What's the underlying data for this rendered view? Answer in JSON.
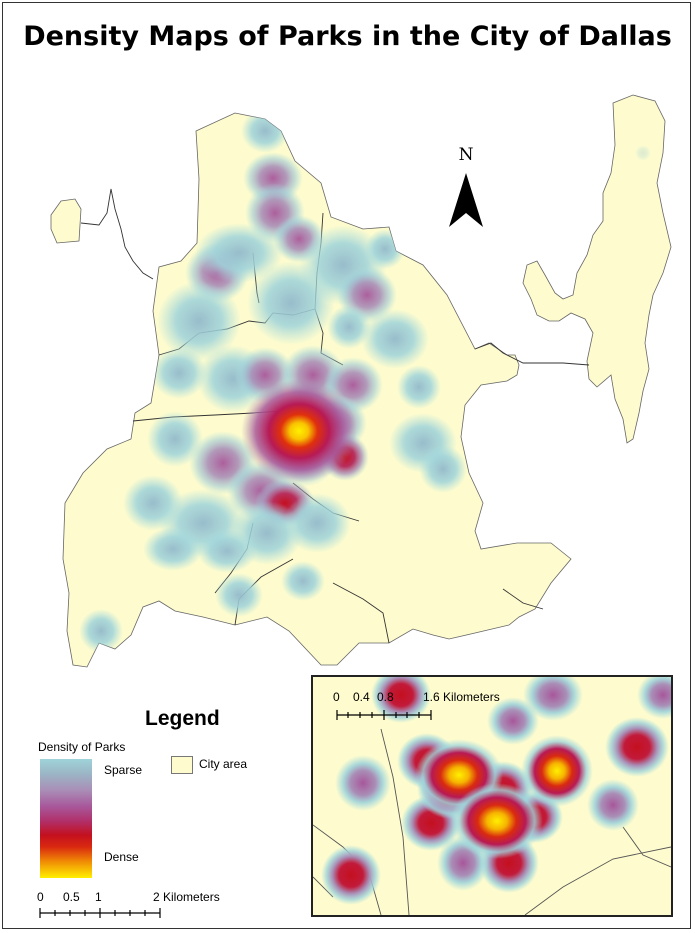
{
  "title": "Density Maps of Parks in the City of Dallas",
  "north_arrow": {
    "letter": "N"
  },
  "legend": {
    "title": "Legend",
    "density_label": "Density of Parks",
    "sparse_label": "Sparse",
    "dense_label": "Dense",
    "city_area_label": "City area"
  },
  "main_scale": {
    "ticks": [
      "0",
      "0.5",
      "1",
      "2 Kilometers"
    ]
  },
  "inset_scale": {
    "ticks": [
      "0",
      "0.4",
      "0.8",
      "1.6 Kilometers"
    ]
  },
  "colors": {
    "city_fill": "#fefcce",
    "sparse": "#9fd3da",
    "medium": "#a8579a",
    "dense_red": "#c4101f",
    "densest": "#fff000"
  }
}
